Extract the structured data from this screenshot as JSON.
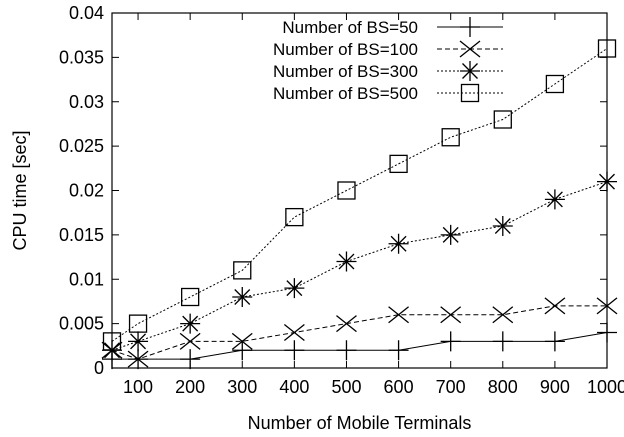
{
  "chart_data": {
    "type": "line",
    "title": "",
    "xlabel": "Number of Mobile Terminals",
    "ylabel": "CPU time [sec]",
    "xlim": [
      50,
      1000
    ],
    "ylim": [
      0,
      0.04
    ],
    "x_ticks": [
      100,
      200,
      300,
      400,
      500,
      600,
      700,
      800,
      900,
      1000
    ],
    "y_ticks": [
      0,
      0.005,
      0.01,
      0.015,
      0.02,
      0.025,
      0.03,
      0.035,
      0.04
    ],
    "x_tick_labels": [
      "100",
      "200",
      "300",
      "400",
      "500",
      "600",
      "700",
      "800",
      "900",
      "1000"
    ],
    "y_tick_labels": [
      "0",
      "0.005",
      "0.01",
      "0.015",
      "0.02",
      "0.025",
      "0.03",
      "0.035",
      "0.04"
    ],
    "x": [
      50,
      100,
      200,
      300,
      400,
      500,
      600,
      700,
      800,
      900,
      1000
    ],
    "grid": false,
    "legend_position": "top-right",
    "series": [
      {
        "name": "Number of BS=50",
        "marker": "plus",
        "dash": "solid",
        "values": [
          0.001,
          0.001,
          0.001,
          0.002,
          0.002,
          0.002,
          0.002,
          0.003,
          0.003,
          0.003,
          0.004
        ]
      },
      {
        "name": "Number of BS=100",
        "marker": "cross",
        "dash": "dashed",
        "values": [
          0.002,
          0.001,
          0.003,
          0.003,
          0.004,
          0.005,
          0.006,
          0.006,
          0.006,
          0.007,
          0.007
        ]
      },
      {
        "name": "Number of BS=300",
        "marker": "star",
        "dash": "dotted",
        "values": [
          0.002,
          0.003,
          0.005,
          0.008,
          0.009,
          0.012,
          0.014,
          0.015,
          0.016,
          0.019,
          0.021
        ]
      },
      {
        "name": "Number of BS=500",
        "marker": "square",
        "dash": "dotted",
        "values": [
          0.003,
          0.005,
          0.008,
          0.011,
          0.017,
          0.02,
          0.023,
          0.026,
          0.028,
          0.032,
          0.036
        ]
      }
    ]
  }
}
